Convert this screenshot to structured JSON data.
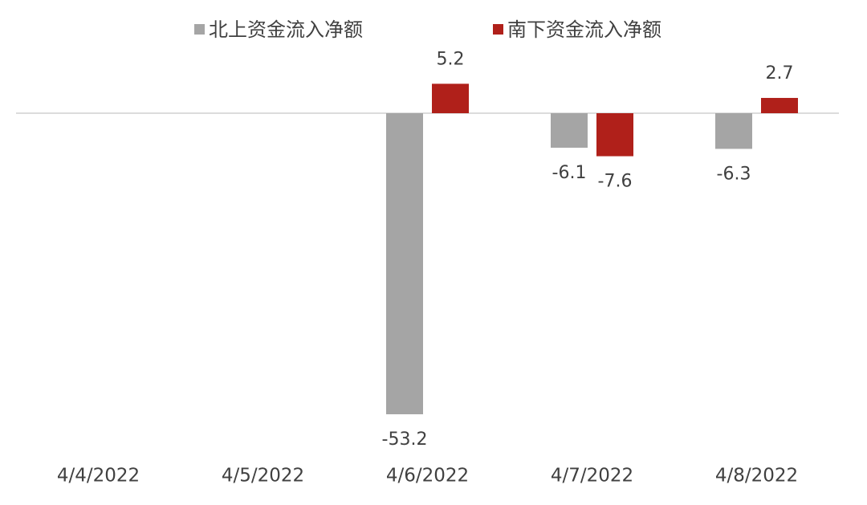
{
  "chart_data": {
    "type": "bar",
    "categories": [
      "4/4/2022",
      "4/5/2022",
      "4/6/2022",
      "4/7/2022",
      "4/8/2022"
    ],
    "series": [
      {
        "name": "北上资金流入净额",
        "color": "#a5a5a5",
        "values": [
          null,
          null,
          -53.2,
          -6.1,
          -6.3
        ]
      },
      {
        "name": "南下资金流入净额",
        "color": "#b0201a",
        "values": [
          null,
          null,
          5.2,
          -7.6,
          2.7
        ]
      }
    ]
  }
}
